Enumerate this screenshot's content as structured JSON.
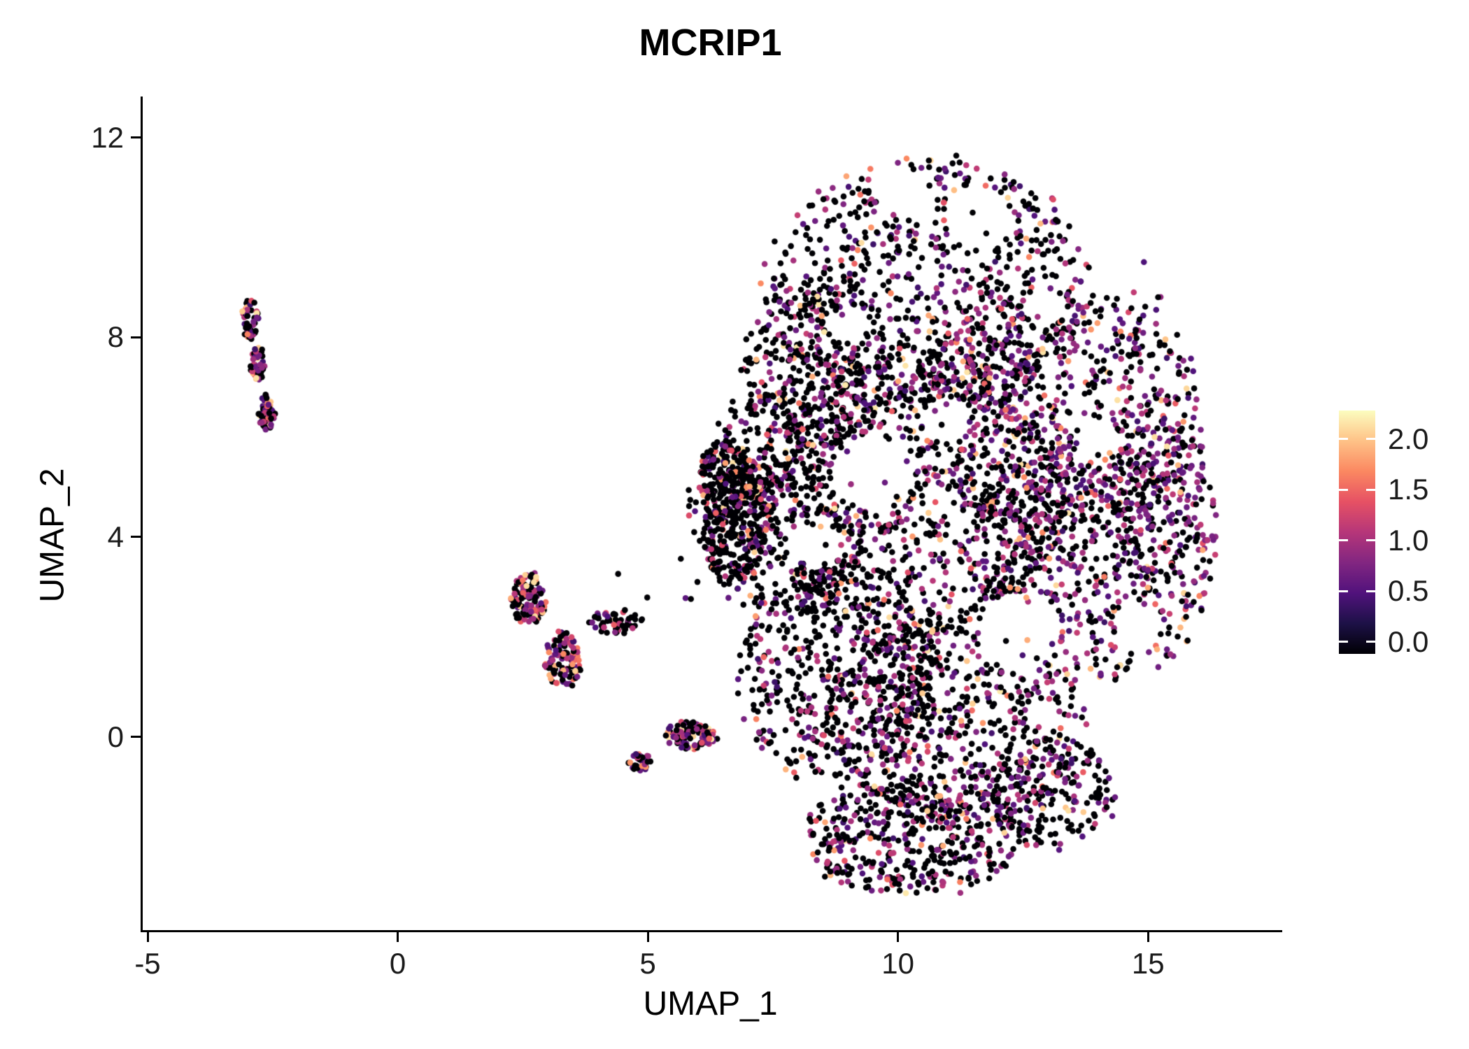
{
  "chart_data": {
    "type": "scatter",
    "title": "MCRIP1",
    "xlabel": "UMAP_1",
    "ylabel": "UMAP_2",
    "xlim": [
      -5.14,
      17.64
    ],
    "ylim": [
      -3.87,
      12.82
    ],
    "xticks": [
      -5,
      0,
      5,
      10,
      15
    ],
    "xtick_labels": [
      "-5",
      "0",
      "5",
      "10",
      "15"
    ],
    "yticks": [
      0,
      4,
      8,
      12
    ],
    "ytick_labels": [
      "0",
      "4",
      "8",
      "12"
    ],
    "grid": false,
    "legend_position": "right",
    "point_radius_px": 4.3,
    "value_range": [
      0,
      2.2
    ],
    "colorbar": {
      "tick_labels": [
        "2.0",
        "1.5",
        "1.0",
        "0.5",
        "0.0"
      ],
      "tick_values": [
        2.0,
        1.5,
        1.0,
        0.5,
        0.0
      ],
      "domain": [
        -0.12,
        2.28
      ],
      "stops": [
        [
          0.0,
          "#000004"
        ],
        [
          0.125,
          "#1D1147"
        ],
        [
          0.25,
          "#51127C"
        ],
        [
          0.375,
          "#822681"
        ],
        [
          0.5,
          "#B63679"
        ],
        [
          0.625,
          "#E65164"
        ],
        [
          0.75,
          "#FB8861"
        ],
        [
          0.875,
          "#FEC287"
        ],
        [
          1.0,
          "#FCFDBF"
        ]
      ]
    },
    "clusters": [
      {
        "name": "left-small-top",
        "n": 55,
        "cx": -2.95,
        "cy": 8.35,
        "rx": 0.17,
        "ry": 0.42,
        "warm": 0.18,
        "mid": 0.42
      },
      {
        "name": "left-small-mid",
        "n": 45,
        "cx": -2.8,
        "cy": 7.45,
        "rx": 0.14,
        "ry": 0.4,
        "warm": 0.12,
        "mid": 0.45
      },
      {
        "name": "left-small-bottom",
        "n": 60,
        "cx": -2.63,
        "cy": 6.5,
        "rx": 0.17,
        "ry": 0.33,
        "warm": 0.12,
        "mid": 0.5
      },
      {
        "name": "mid-cluster-upper",
        "n": 120,
        "cx": 2.62,
        "cy": 2.75,
        "rx": 0.34,
        "ry": 0.52,
        "warm": 0.3,
        "mid": 0.3
      },
      {
        "name": "mid-cluster-lower",
        "n": 110,
        "cx": 3.3,
        "cy": 1.55,
        "rx": 0.38,
        "ry": 0.55,
        "warm": 0.28,
        "mid": 0.32
      },
      {
        "name": "mid-cluster-arm",
        "n": 60,
        "cx": 4.35,
        "cy": 2.3,
        "rx": 0.55,
        "ry": 0.24,
        "warm": 0.08,
        "mid": 0.35
      },
      {
        "name": "mid-tail",
        "n": 110,
        "cx": 5.85,
        "cy": 0.02,
        "rx": 0.52,
        "ry": 0.28,
        "warm": 0.12,
        "mid": 0.45
      },
      {
        "name": "mid-tail-dangle",
        "n": 35,
        "cx": 4.85,
        "cy": -0.5,
        "rx": 0.24,
        "ry": 0.17,
        "warm": 0.08,
        "mid": 0.55
      },
      {
        "name": "strays-left",
        "n": 8,
        "cx": 5.3,
        "cy": 3.3,
        "rx": 1.2,
        "ry": 0.9,
        "warm": 0.0,
        "mid": 0.25
      },
      {
        "name": "strays-topright",
        "n": 4,
        "cx": 15.1,
        "cy": 9.0,
        "rx": 0.5,
        "ry": 0.6,
        "warm": 0.0,
        "mid": 0.5
      },
      {
        "name": "main-top",
        "n": 780,
        "cx": 10.6,
        "cy": 9.0,
        "rx": 3.2,
        "ry": 2.55,
        "warm": 0.07,
        "mid": 0.33
      },
      {
        "name": "main-upper-right",
        "n": 720,
        "cx": 13.2,
        "cy": 6.5,
        "rx": 2.85,
        "ry": 2.6,
        "warm": 0.08,
        "mid": 0.45
      },
      {
        "name": "main-right",
        "n": 650,
        "cx": 13.9,
        "cy": 3.6,
        "rx": 2.35,
        "ry": 2.5,
        "warm": 0.08,
        "mid": 0.45
      },
      {
        "name": "main-center",
        "n": 880,
        "cx": 10.3,
        "cy": 4.8,
        "rx": 3.1,
        "ry": 3.0,
        "warm": 0.07,
        "mid": 0.3
      },
      {
        "name": "main-left-wedge",
        "n": 520,
        "cx": 7.7,
        "cy": 4.7,
        "rx": 1.8,
        "ry": 2.3,
        "warm": 0.06,
        "mid": 0.25
      },
      {
        "name": "main-left-band",
        "n": 230,
        "cx": 6.85,
        "cy": 4.3,
        "rx": 0.6,
        "ry": 1.25,
        "warm": 0.07,
        "mid": 0.2,
        "rot": -18
      },
      {
        "name": "main-left-tip",
        "n": 170,
        "cx": 6.55,
        "cy": 5.1,
        "rx": 0.55,
        "ry": 0.8,
        "warm": 0.12,
        "mid": 0.2
      },
      {
        "name": "main-bottom-left",
        "n": 500,
        "cx": 8.8,
        "cy": 1.3,
        "rx": 2.0,
        "ry": 2.2,
        "warm": 0.05,
        "mid": 0.28
      },
      {
        "name": "main-bottom",
        "n": 600,
        "cx": 11.1,
        "cy": 0.4,
        "rx": 2.6,
        "ry": 2.1,
        "warm": 0.06,
        "mid": 0.35
      },
      {
        "name": "main-bottom-tongue",
        "n": 430,
        "cx": 10.3,
        "cy": -2.0,
        "rx": 2.2,
        "ry": 1.15,
        "warm": 0.05,
        "mid": 0.35
      },
      {
        "name": "main-bottom-right",
        "n": 210,
        "cx": 13.0,
        "cy": -1.1,
        "rx": 1.3,
        "ry": 1.15,
        "warm": 0.06,
        "mid": 0.4
      },
      {
        "name": "main-top-left",
        "n": 280,
        "cx": 8.4,
        "cy": 7.4,
        "rx": 1.5,
        "ry": 1.8,
        "warm": 0.06,
        "mid": 0.3
      },
      {
        "name": "main-right-edge",
        "n": 160,
        "cx": 15.3,
        "cy": 5.0,
        "rx": 1.1,
        "ry": 1.9,
        "warm": 0.06,
        "mid": 0.5
      }
    ],
    "holes": [
      {
        "x": 9.4,
        "y": 5.3,
        "r": 0.75
      },
      {
        "x": 8.35,
        "y": 3.95,
        "r": 0.5
      },
      {
        "x": 12.45,
        "y": 2.1,
        "r": 0.8
      },
      {
        "x": 11.6,
        "y": 10.4,
        "r": 0.65
      },
      {
        "x": 10.0,
        "y": 10.95,
        "r": 0.5
      },
      {
        "x": 13.95,
        "y": 5.9,
        "r": 0.5
      },
      {
        "x": 9.05,
        "y": 8.25,
        "r": 0.4
      },
      {
        "x": 10.95,
        "y": 6.35,
        "r": 0.45
      },
      {
        "x": 12.9,
        "y": 8.6,
        "r": 0.4
      },
      {
        "x": 14.8,
        "y": 2.2,
        "r": 0.45
      }
    ]
  }
}
